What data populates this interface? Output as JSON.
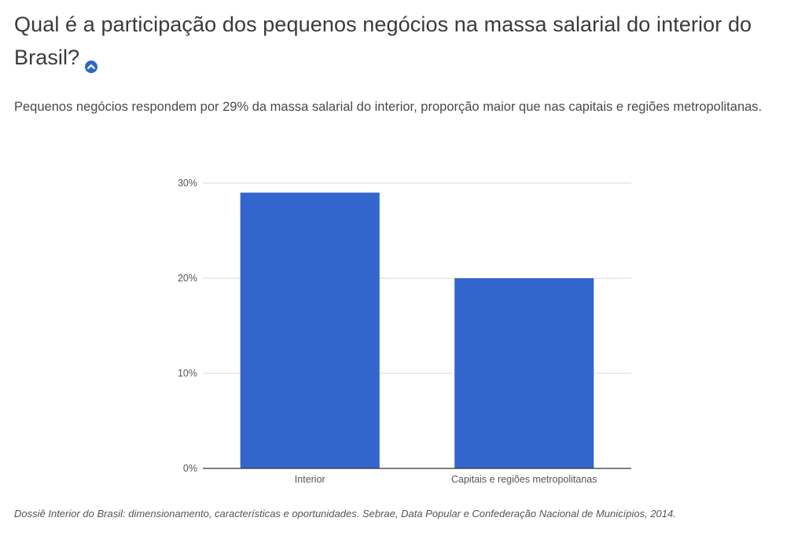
{
  "header": {
    "title": "Qual é a participação dos pequenos negócios na massa salarial do interior do Brasil?",
    "subtitle": "Pequenos negócios respondem por 29% da massa salarial do interior, proporção maior que nas capitais e regiões metropolitanas.",
    "toggle_icon": "chevron-up-icon",
    "accent_color": "#2d67c8"
  },
  "chart_data": {
    "type": "bar",
    "categories": [
      "Interior",
      "Capitais e regiões metropolitanas"
    ],
    "values": [
      29,
      20
    ],
    "value_format": "percent",
    "ylim": [
      0,
      30
    ],
    "yticks": [
      "0%",
      "10%",
      "20%",
      "30%"
    ],
    "ytick_values": [
      0,
      10,
      20,
      30
    ],
    "grid": true,
    "bar_color": "#3366cc",
    "title": "",
    "xlabel": "",
    "ylabel": ""
  },
  "footer": {
    "source": "Dossiê Interior do Brasil: dimensionamento, características e oportunidades. Sebrae, Data Popular e Confederação Nacional de Municípios, 2014."
  }
}
